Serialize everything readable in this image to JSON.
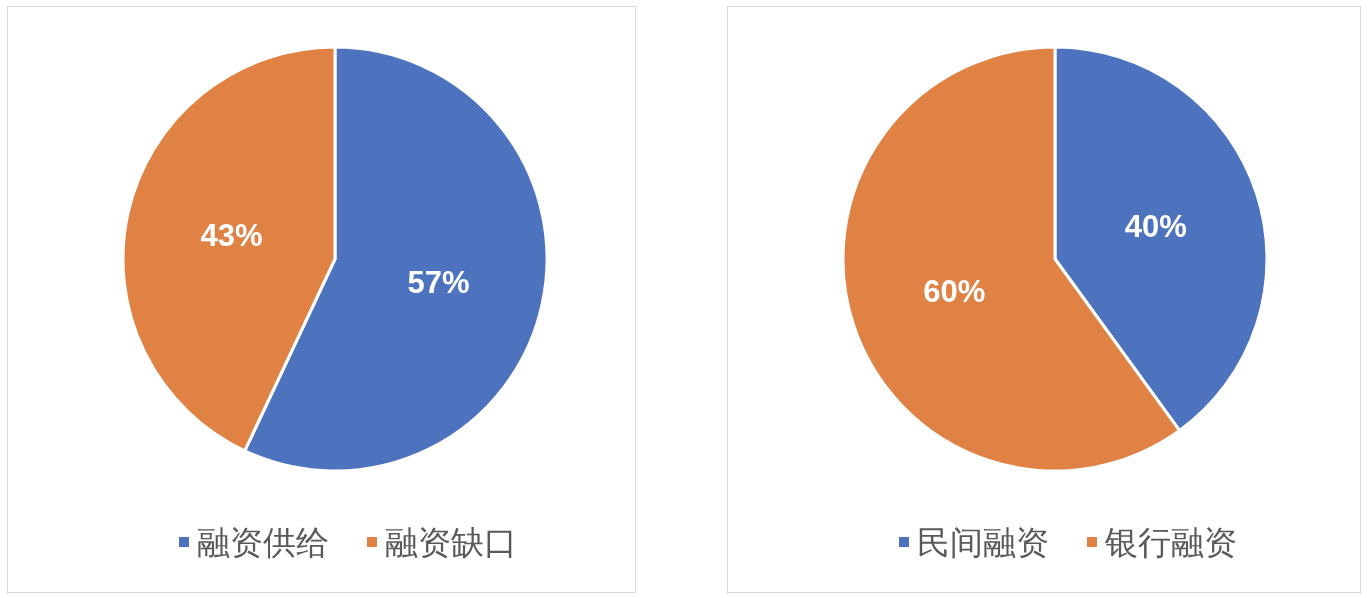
{
  "chart_data": [
    {
      "type": "pie",
      "categories": [
        "融资供给",
        "融资缺口"
      ],
      "values": [
        57,
        43
      ],
      "colors": [
        "#4d72be",
        "#df8244"
      ],
      "value_labels": [
        "57%",
        "43%"
      ],
      "legend": "bottom"
    },
    {
      "type": "pie",
      "categories": [
        "民间融资",
        "银行融资"
      ],
      "values": [
        40,
        60
      ],
      "colors": [
        "#4d72be",
        "#df8244"
      ],
      "value_labels": [
        "40%",
        "60%"
      ],
      "legend": "bottom"
    }
  ]
}
